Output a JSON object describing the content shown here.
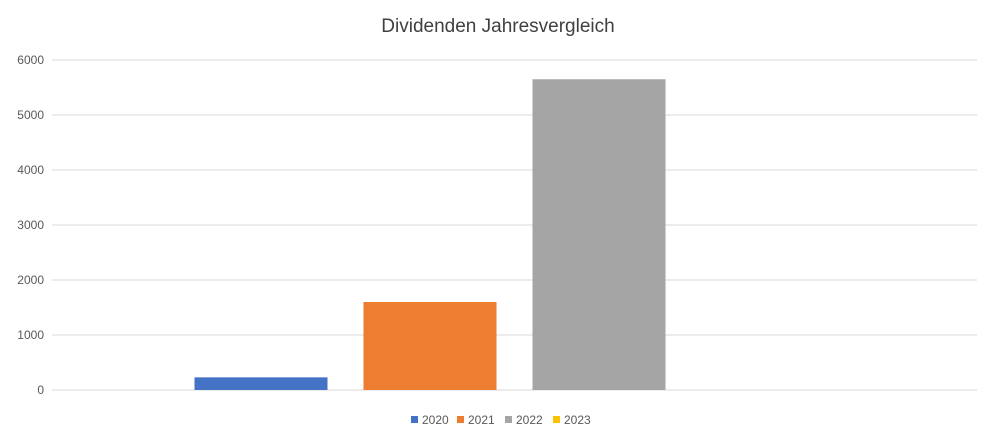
{
  "chart_data": {
    "type": "bar",
    "title": "Dividenden Jahresvergleich",
    "xlabel": "",
    "ylabel": "",
    "ylim": [
      0,
      6000
    ],
    "yticks": [
      0,
      1000,
      2000,
      3000,
      4000,
      5000,
      6000
    ],
    "grid": true,
    "legend": "bottom",
    "series": [
      {
        "name": "2020",
        "value": 230,
        "color": "#4472C4"
      },
      {
        "name": "2021",
        "value": 1600,
        "color": "#ED7D31"
      },
      {
        "name": "2022",
        "value": 5650,
        "color": "#A5A5A5"
      },
      {
        "name": "2023",
        "value": 0,
        "color": "#FFC000"
      }
    ]
  }
}
